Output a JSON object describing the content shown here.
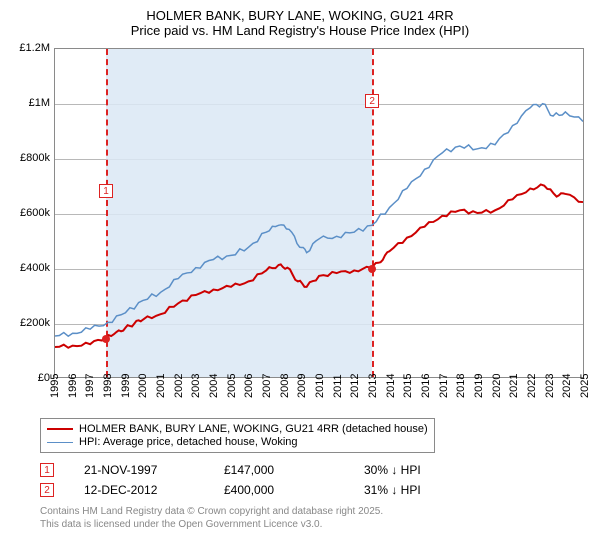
{
  "title_line1": "HOLMER BANK, BURY LANE, WOKING, GU21 4RR",
  "title_line2": "Price paid vs. HM Land Registry's House Price Index (HPI)",
  "chart": {
    "type": "line",
    "x_start_year": 1995,
    "x_end_year": 2025,
    "y_min": 0,
    "y_max": 1200000,
    "y_ticks": [
      {
        "v": 0,
        "label": "£0"
      },
      {
        "v": 200000,
        "label": "£200k"
      },
      {
        "v": 400000,
        "label": "£400k"
      },
      {
        "v": 600000,
        "label": "£600k"
      },
      {
        "v": 800000,
        "label": "£800k"
      },
      {
        "v": 1000000,
        "label": "£1M"
      },
      {
        "v": 1200000,
        "label": "£1.2M"
      }
    ],
    "x_years": [
      1995,
      1996,
      1997,
      1998,
      1999,
      2000,
      2001,
      2002,
      2003,
      2004,
      2005,
      2006,
      2007,
      2008,
      2009,
      2010,
      2011,
      2012,
      2013,
      2014,
      2015,
      2016,
      2017,
      2018,
      2019,
      2020,
      2021,
      2022,
      2023,
      2024,
      2025
    ],
    "background_color": "#ffffff",
    "grid_color": "#b8b8b8",
    "shaded_region": {
      "x_from": 1997.89,
      "x_to": 2012.95,
      "color": "#dbe8f5"
    },
    "series": [
      {
        "name": "price_paid",
        "label": "HOLMER BANK, BURY LANE, WOKING, GU21 4RR (detached house)",
        "color": "#cc0000",
        "width": 2,
        "data": [
          [
            1995.0,
            110000
          ],
          [
            1996.0,
            115000
          ],
          [
            1997.0,
            120000
          ],
          [
            1997.89,
            147000
          ],
          [
            1998.5,
            165000
          ],
          [
            1999.0,
            180000
          ],
          [
            1999.5,
            195000
          ],
          [
            2000.0,
            210000
          ],
          [
            2001.0,
            230000
          ],
          [
            2002.0,
            270000
          ],
          [
            2003.0,
            300000
          ],
          [
            2004.0,
            320000
          ],
          [
            2005.0,
            330000
          ],
          [
            2006.0,
            350000
          ],
          [
            2007.0,
            390000
          ],
          [
            2007.7,
            410000
          ],
          [
            2008.2,
            400000
          ],
          [
            2008.8,
            350000
          ],
          [
            2009.3,
            330000
          ],
          [
            2010.0,
            370000
          ],
          [
            2011.0,
            380000
          ],
          [
            2012.0,
            390000
          ],
          [
            2012.95,
            400000
          ],
          [
            2013.5,
            420000
          ],
          [
            2014.0,
            460000
          ],
          [
            2015.0,
            510000
          ],
          [
            2016.0,
            550000
          ],
          [
            2017.0,
            590000
          ],
          [
            2018.0,
            610000
          ],
          [
            2019.0,
            600000
          ],
          [
            2020.0,
            610000
          ],
          [
            2021.0,
            650000
          ],
          [
            2022.0,
            690000
          ],
          [
            2022.8,
            700000
          ],
          [
            2023.5,
            660000
          ],
          [
            2024.0,
            670000
          ],
          [
            2025.0,
            640000
          ]
        ]
      },
      {
        "name": "hpi",
        "label": "HPI: Average price, detached house, Woking",
        "color": "#5b8fc7",
        "width": 1.5,
        "data": [
          [
            1995.0,
            150000
          ],
          [
            1996.0,
            160000
          ],
          [
            1997.0,
            175000
          ],
          [
            1998.0,
            200000
          ],
          [
            1999.0,
            235000
          ],
          [
            2000.0,
            280000
          ],
          [
            2001.0,
            310000
          ],
          [
            2002.0,
            360000
          ],
          [
            2003.0,
            400000
          ],
          [
            2004.0,
            430000
          ],
          [
            2005.0,
            445000
          ],
          [
            2006.0,
            475000
          ],
          [
            2007.0,
            530000
          ],
          [
            2007.7,
            555000
          ],
          [
            2008.3,
            540000
          ],
          [
            2008.9,
            475000
          ],
          [
            2009.3,
            455000
          ],
          [
            2010.0,
            505000
          ],
          [
            2011.0,
            515000
          ],
          [
            2012.0,
            530000
          ],
          [
            2013.0,
            555000
          ],
          [
            2014.0,
            620000
          ],
          [
            2015.0,
            690000
          ],
          [
            2016.0,
            760000
          ],
          [
            2017.0,
            820000
          ],
          [
            2018.0,
            845000
          ],
          [
            2019.0,
            835000
          ],
          [
            2020.0,
            850000
          ],
          [
            2021.0,
            920000
          ],
          [
            2022.0,
            985000
          ],
          [
            2022.7,
            1000000
          ],
          [
            2023.3,
            955000
          ],
          [
            2024.0,
            970000
          ],
          [
            2025.0,
            935000
          ]
        ]
      }
    ],
    "sale_markers": [
      {
        "idx": "1",
        "x": 1997.89,
        "y": 147000,
        "label_y_offset": -155
      },
      {
        "idx": "2",
        "x": 2012.95,
        "y": 400000,
        "label_y_offset": -175
      }
    ]
  },
  "legend": {
    "items": [
      {
        "color": "#cc0000",
        "width": 2,
        "label_key": "chart.series.0.label"
      },
      {
        "color": "#5b8fc7",
        "width": 1.5,
        "label_key": "chart.series.1.label"
      }
    ]
  },
  "sales_table": [
    {
      "idx": "1",
      "date": "21-NOV-1997",
      "price": "£147,000",
      "delta": "30% ↓ HPI"
    },
    {
      "idx": "2",
      "date": "12-DEC-2012",
      "price": "£400,000",
      "delta": "31% ↓ HPI"
    }
  ],
  "footer_line1": "Contains HM Land Registry data © Crown copyright and database right 2025.",
  "footer_line2": "This data is licensed under the Open Government Licence v3.0."
}
